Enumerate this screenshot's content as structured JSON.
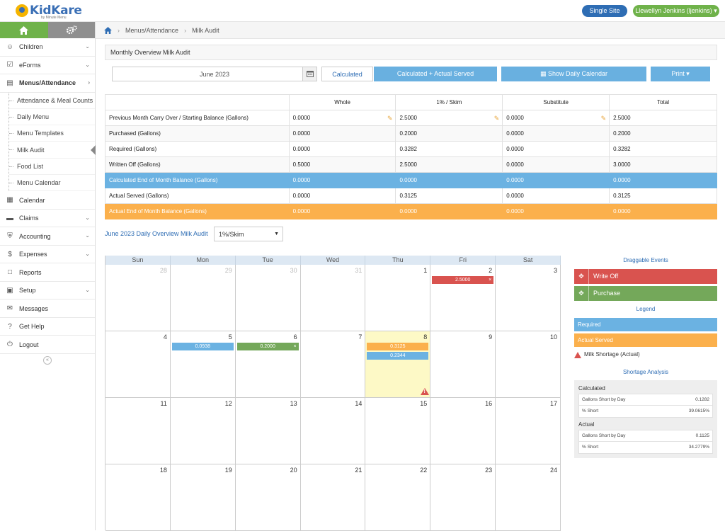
{
  "header": {
    "logo_text": "KidKare",
    "logo_sub": "by Minute Menu",
    "site_label": "Single Site",
    "user_label": "Llewellyn Jenkins (ljenkins)"
  },
  "sidebar": {
    "items": [
      {
        "label": "Children",
        "icon": "child-icon"
      },
      {
        "label": "eForms",
        "icon": "checkbox-icon"
      },
      {
        "label": "Menus/Attendance",
        "icon": "clipboard-icon"
      },
      {
        "label": "Calendar",
        "icon": "calendar-icon"
      },
      {
        "label": "Claims",
        "icon": "folder-icon"
      },
      {
        "label": "Accounting",
        "icon": "bank-icon"
      },
      {
        "label": "Expenses",
        "icon": "dollar-icon"
      },
      {
        "label": "Reports",
        "icon": "report-icon"
      },
      {
        "label": "Setup",
        "icon": "briefcase-icon"
      },
      {
        "label": "Messages",
        "icon": "envelope-icon"
      },
      {
        "label": "Get Help",
        "icon": "question-icon"
      },
      {
        "label": "Logout",
        "icon": "power-icon"
      }
    ],
    "sub_items": [
      "Attendance & Meal Counts",
      "Daily Menu",
      "Menu Templates",
      "Milk Audit",
      "Food List",
      "Menu Calendar"
    ]
  },
  "breadcrumb": {
    "section": "Menus/Attendance",
    "page": "Milk Audit"
  },
  "overview": {
    "title": "Monthly Overview Milk Audit",
    "month": "June 2023",
    "btn_calculated": "Calculated",
    "btn_calc_actual": "Calculated + Actual Served",
    "btn_daily": "Show Daily Calendar",
    "btn_print": "Print",
    "columns": [
      "",
      "Whole",
      "1% / Skim",
      "Substitute",
      "Total"
    ],
    "rows": [
      {
        "label": "Previous Month Carry Over / Starting Balance (Gallons)",
        "values": [
          "0.0000",
          "2.5000",
          "0.0000",
          "2.5000"
        ]
      },
      {
        "label": "Purchased (Gallons)",
        "values": [
          "0.0000",
          "0.2000",
          "0.0000",
          "0.2000"
        ]
      },
      {
        "label": "Required (Gallons)",
        "values": [
          "0.0000",
          "0.3282",
          "0.0000",
          "0.3282"
        ]
      },
      {
        "label": "Written Off (Gallons)",
        "values": [
          "0.5000",
          "2.5000",
          "0.0000",
          "3.0000"
        ]
      },
      {
        "label": "Calculated End of Month Balance (Gallons)",
        "values": [
          "0.0000",
          "0.0000",
          "0.0000",
          "0.0000"
        ]
      },
      {
        "label": "Actual Served (Gallons)",
        "values": [
          "0.0000",
          "0.3125",
          "0.0000",
          "0.3125"
        ]
      },
      {
        "label": "Actual End of Month Balance (Gallons)",
        "values": [
          "0.0000",
          "0.0000",
          "0.0000",
          "0.0000"
        ]
      }
    ]
  },
  "daily": {
    "title": "June 2023 Daily Overview Milk Audit",
    "milk_type": "1%/Skim",
    "weekdays": [
      "Sun",
      "Mon",
      "Tue",
      "Wed",
      "Thu",
      "Fri",
      "Sat"
    ],
    "weeks": [
      [
        "28",
        "29",
        "30",
        "31",
        "1",
        "2",
        "3"
      ],
      [
        "4",
        "5",
        "6",
        "7",
        "8",
        "9",
        "10"
      ],
      [
        "11",
        "12",
        "13",
        "14",
        "15",
        "16",
        "17"
      ],
      [
        "18",
        "19",
        "20",
        "21",
        "22",
        "23",
        "24"
      ]
    ],
    "events": {
      "fri2": "2.5000",
      "mon5": "0.0938",
      "tue6": "0.2000",
      "thu8_actual": "0.3125",
      "thu8_required": "0.2344"
    }
  },
  "right": {
    "draggable_title": "Draggable Events",
    "write_off": "Write Off",
    "purchase": "Purchase",
    "legend_title": "Legend",
    "legend_required": "Required",
    "legend_actual": "Actual Served",
    "legend_shortage": "Milk Shortage (Actual)",
    "shortage_title": "Shortage Analysis",
    "calculated_label": "Calculated",
    "actual_label": "Actual",
    "gallons_short_label": "Gallons Short by Day",
    "pct_short_label": "% Short",
    "calc_gallons": "0.1282",
    "calc_pct": "39.0615%",
    "actual_gallons": "0.1125",
    "actual_pct": "34.2779%"
  },
  "colors": {
    "green": "#6fb24a",
    "blue": "#6bb2e2",
    "orange": "#fbb04c",
    "red": "#d9534f",
    "brand_blue": "#2e6db4"
  }
}
